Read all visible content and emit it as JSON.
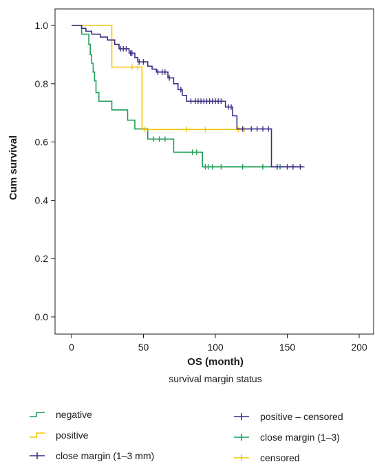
{
  "chart_data": {
    "type": "line",
    "step": true,
    "ylabel": "Cum survival",
    "xlabel": "OS (month)",
    "xsublabel": "survival margin status",
    "xlim": [
      0,
      200
    ],
    "ylim": [
      0.0,
      1.0
    ],
    "xticks": [
      "0",
      "50",
      "100",
      "150",
      "200"
    ],
    "yticks": [
      "0.0",
      "0.2",
      "0.4",
      "0.6",
      "0.8",
      "1.0"
    ],
    "grid": false,
    "legend_position": "bottom",
    "series": [
      {
        "name": "negative",
        "color": "#1f9e57",
        "steps": [
          [
            0,
            1.0
          ],
          [
            7,
            0.97
          ],
          [
            12,
            0.935
          ],
          [
            13,
            0.9
          ],
          [
            14,
            0.87
          ],
          [
            15,
            0.84
          ],
          [
            16,
            0.81
          ],
          [
            17,
            0.77
          ],
          [
            19,
            0.74
          ],
          [
            28,
            0.71
          ],
          [
            39,
            0.675
          ],
          [
            44,
            0.645
          ],
          [
            53,
            0.61
          ],
          [
            71,
            0.565
          ],
          [
            91,
            0.515
          ],
          [
            162,
            0.515
          ]
        ],
        "censored": [
          [
            57,
            0.61
          ],
          [
            61,
            0.61
          ],
          [
            65,
            0.61
          ],
          [
            84,
            0.565
          ],
          [
            87,
            0.565
          ],
          [
            93,
            0.515
          ],
          [
            95,
            0.515
          ],
          [
            98,
            0.515
          ],
          [
            104,
            0.515
          ],
          [
            119,
            0.515
          ],
          [
            133,
            0.515
          ],
          [
            145,
            0.515
          ]
        ]
      },
      {
        "name": "positive",
        "color": "#f5c400",
        "steps": [
          [
            0,
            1.0
          ],
          [
            28,
            0.857
          ],
          [
            49,
            0.643
          ],
          [
            120,
            0.643
          ]
        ],
        "censored": [
          [
            42,
            0.857
          ],
          [
            46,
            0.857
          ],
          [
            51,
            0.643
          ],
          [
            80,
            0.643
          ],
          [
            93,
            0.643
          ],
          [
            116,
            0.643
          ],
          [
            120,
            0.643
          ]
        ]
      },
      {
        "name": "close margin (1–3 mm)",
        "color": "#3a2f85",
        "steps": [
          [
            0,
            1.0
          ],
          [
            7,
            0.99
          ],
          [
            10,
            0.98
          ],
          [
            14,
            0.97
          ],
          [
            20,
            0.96
          ],
          [
            25,
            0.95
          ],
          [
            30,
            0.935
          ],
          [
            33,
            0.92
          ],
          [
            40,
            0.905
          ],
          [
            44,
            0.89
          ],
          [
            46,
            0.875
          ],
          [
            53,
            0.86
          ],
          [
            56,
            0.85
          ],
          [
            59,
            0.84
          ],
          [
            67,
            0.82
          ],
          [
            71,
            0.8
          ],
          [
            74,
            0.78
          ],
          [
            77,
            0.76
          ],
          [
            80,
            0.74
          ],
          [
            107,
            0.72
          ],
          [
            112,
            0.69
          ],
          [
            115,
            0.645
          ],
          [
            139,
            0.515
          ],
          [
            161,
            0.515
          ]
        ],
        "censored": [
          [
            34,
            0.92
          ],
          [
            36,
            0.92
          ],
          [
            38,
            0.92
          ],
          [
            41,
            0.905
          ],
          [
            42,
            0.905
          ],
          [
            47,
            0.875
          ],
          [
            50,
            0.875
          ],
          [
            60,
            0.84
          ],
          [
            63,
            0.84
          ],
          [
            65,
            0.84
          ],
          [
            68,
            0.82
          ],
          [
            76,
            0.78
          ],
          [
            83,
            0.74
          ],
          [
            86,
            0.74
          ],
          [
            88,
            0.74
          ],
          [
            90,
            0.74
          ],
          [
            92,
            0.74
          ],
          [
            94,
            0.74
          ],
          [
            96,
            0.74
          ],
          [
            98,
            0.74
          ],
          [
            100,
            0.74
          ],
          [
            102,
            0.74
          ],
          [
            104,
            0.74
          ],
          [
            109,
            0.72
          ],
          [
            111,
            0.72
          ],
          [
            119,
            0.645
          ],
          [
            125,
            0.645
          ],
          [
            129,
            0.645
          ],
          [
            133,
            0.645
          ],
          [
            137,
            0.645
          ],
          [
            143,
            0.515
          ],
          [
            150,
            0.515
          ],
          [
            154,
            0.515
          ],
          [
            159,
            0.515
          ]
        ]
      }
    ],
    "legend_left": [
      {
        "label": "negative",
        "symbol": "step",
        "color": "#1f9e57"
      },
      {
        "label": "positive",
        "symbol": "step",
        "color": "#f5c400"
      },
      {
        "label": "close margin (1–3 mm)",
        "symbol": "cross",
        "color": "#3a2f85"
      }
    ],
    "legend_right": [
      {
        "label": "positive – censored",
        "symbol": "cross",
        "color": "#3a2f85"
      },
      {
        "label": "close margin (1–3)",
        "symbol": "cross",
        "color": "#1f9e57"
      },
      {
        "label": "censored",
        "symbol": "cross",
        "color": "#f5c400"
      }
    ]
  }
}
